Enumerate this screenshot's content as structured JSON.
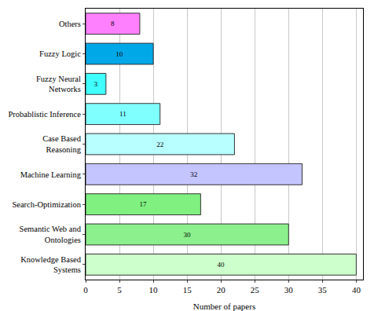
{
  "chart_data": {
    "type": "bar",
    "orientation": "horizontal",
    "x_label": "Number of papers",
    "categories": [
      "Others",
      "Fuzzy Logic",
      "Fuzzy Neural Networks",
      "Probablistic Inference",
      "Case Based Reasoning",
      "Machine Learning",
      "Search-Optimization",
      "Semantic Web and Ontologies",
      "Knowledge Based Systems"
    ],
    "values": [
      8,
      10,
      3,
      11,
      22,
      32,
      17,
      30,
      40
    ],
    "colors": [
      "#ff80ff",
      "#00a8e8",
      "#40ffff",
      "#80ffff",
      "#b8ffff",
      "#c4c4ff",
      "#80f080",
      "#8cf08c",
      "#ccffcc"
    ],
    "xlim": [
      0,
      41
    ],
    "xticks": [
      0,
      5,
      10,
      15,
      20,
      25,
      30,
      35,
      40
    ],
    "grid": true,
    "data_labels": true
  }
}
